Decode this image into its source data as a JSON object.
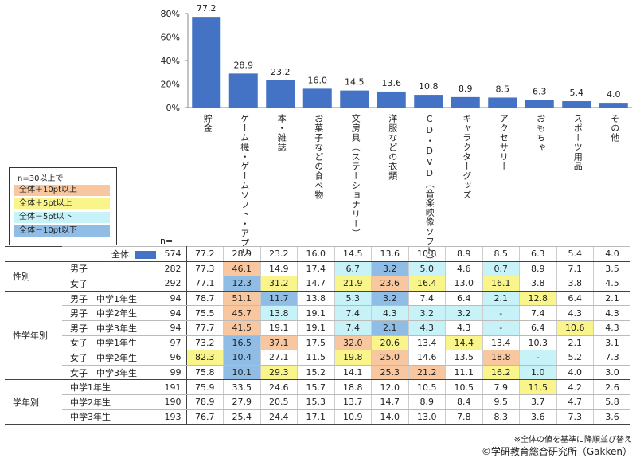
{
  "colors": {
    "bar": "#4472c4",
    "plus10": "#f8c7a0",
    "plus5": "#faf58a",
    "minus5": "#c7f3f8",
    "minus10": "#8fbde6"
  },
  "chart_data": {
    "type": "bar",
    "categories": [
      "貯金",
      "ゲーム機・ゲームソフト・アプリ",
      "本・雑誌",
      "お菓子などの食べ物",
      "文房具（ステーショナリー）",
      "洋服などの衣類",
      "CD・DVD（音楽映像ソフト）",
      "キャラクターグッズ",
      "アクセサリー",
      "おもちゃ",
      "スポーツ用品",
      "その他"
    ],
    "values": [
      77.2,
      28.9,
      23.2,
      16.0,
      14.5,
      13.6,
      10.8,
      8.9,
      8.5,
      6.3,
      5.4,
      4.0
    ],
    "ylim": [
      0,
      80
    ],
    "yticks": [
      "0%",
      "20%",
      "40%",
      "60%",
      "80%"
    ],
    "value_labels": [
      "77.2",
      "28.9",
      "23.2",
      "16.0",
      "14.5",
      "13.6",
      "10.8",
      "8.9",
      "8.5",
      "6.3",
      "5.4",
      "4.0"
    ]
  },
  "legend": {
    "title": "n=30以上で",
    "items": [
      {
        "label": "全体＋10pt以上",
        "color": "#f8c7a0"
      },
      {
        "label": "全体＋5pt以上",
        "color": "#faf58a"
      },
      {
        "label": "全体－5pt以下",
        "color": "#c7f3f8"
      },
      {
        "label": "全体－10pt以下",
        "color": "#8fbde6"
      }
    ]
  },
  "n_header": "n=",
  "table": [
    {
      "group": "",
      "sub": "全体",
      "n": "574",
      "vals": [
        "77.2",
        "28.9",
        "23.2",
        "16.0",
        "14.5",
        "13.6",
        "10.8",
        "8.9",
        "8.5",
        "6.3",
        "5.4",
        "4.0"
      ],
      "hl": [
        "",
        "",
        "",
        "",
        "",
        "",
        "",
        "",
        "",
        "",
        "",
        ""
      ],
      "total": true
    },
    {
      "group": "性別",
      "sub": "男子",
      "n": "282",
      "vals": [
        "77.3",
        "46.1",
        "14.9",
        "17.4",
        "6.7",
        "3.2",
        "5.0",
        "4.6",
        "0.7",
        "8.9",
        "7.1",
        "3.5"
      ],
      "hl": [
        "",
        "p10",
        "",
        "",
        "m5",
        "m10",
        "m5",
        "",
        "m5",
        "",
        "",
        ""
      ]
    },
    {
      "group": "",
      "sub": "女子",
      "n": "292",
      "vals": [
        "77.1",
        "12.3",
        "31.2",
        "14.7",
        "21.9",
        "23.6",
        "16.4",
        "13.0",
        "16.1",
        "3.8",
        "3.8",
        "4.5"
      ],
      "hl": [
        "",
        "m10",
        "p5",
        "",
        "p5",
        "p10",
        "p5",
        "",
        "p5",
        "",
        "",
        ""
      ]
    },
    {
      "group": "性学年別",
      "sub": "男子　中学1年生",
      "n": "94",
      "vals": [
        "78.7",
        "51.1",
        "11.7",
        "13.8",
        "5.3",
        "3.2",
        "7.4",
        "6.4",
        "2.1",
        "12.8",
        "6.4",
        "2.1"
      ],
      "hl": [
        "",
        "p10",
        "m10",
        "",
        "m5",
        "m10",
        "",
        "",
        "m5",
        "p5",
        "",
        ""
      ]
    },
    {
      "group": "",
      "sub": "男子　中学2年生",
      "n": "94",
      "vals": [
        "75.5",
        "45.7",
        "13.8",
        "19.1",
        "7.4",
        "4.3",
        "3.2",
        "3.2",
        "-",
        "7.4",
        "4.3",
        "4.3"
      ],
      "hl": [
        "",
        "p10",
        "m5",
        "",
        "m5",
        "m5",
        "m5",
        "m5",
        "m5",
        "",
        "",
        ""
      ]
    },
    {
      "group": "",
      "sub": "男子　中学3年生",
      "n": "94",
      "vals": [
        "77.7",
        "41.5",
        "19.1",
        "19.1",
        "7.4",
        "2.1",
        "4.3",
        "4.3",
        "-",
        "6.4",
        "10.6",
        "4.3"
      ],
      "hl": [
        "",
        "p10",
        "",
        "",
        "m5",
        "m10",
        "m5",
        "",
        "m5",
        "",
        "p5",
        ""
      ]
    },
    {
      "group": "",
      "sub": "女子　中学1年生",
      "n": "97",
      "vals": [
        "73.2",
        "16.5",
        "37.1",
        "17.5",
        "32.0",
        "20.6",
        "13.4",
        "14.4",
        "13.4",
        "10.3",
        "2.1",
        "3.1"
      ],
      "hl": [
        "",
        "m10",
        "p10",
        "",
        "p10",
        "p5",
        "",
        "p5",
        "",
        "",
        "",
        ""
      ]
    },
    {
      "group": "",
      "sub": "女子　中学2年生",
      "n": "96",
      "vals": [
        "82.3",
        "10.4",
        "27.1",
        "11.5",
        "19.8",
        "25.0",
        "14.6",
        "13.5",
        "18.8",
        "-",
        "5.2",
        "7.3"
      ],
      "hl": [
        "p5",
        "m10",
        "",
        "",
        "p5",
        "p10",
        "",
        "",
        "p10",
        "m5",
        "",
        ""
      ]
    },
    {
      "group": "",
      "sub": "女子　中学3年生",
      "n": "99",
      "vals": [
        "75.8",
        "10.1",
        "29.3",
        "15.2",
        "14.1",
        "25.3",
        "21.2",
        "11.1",
        "16.2",
        "1.0",
        "4.0",
        "3.0"
      ],
      "hl": [
        "",
        "m10",
        "p5",
        "",
        "",
        "p10",
        "p10",
        "",
        "p5",
        "m5",
        "",
        ""
      ]
    },
    {
      "group": "学年別",
      "sub": "中学1年生",
      "n": "191",
      "vals": [
        "75.9",
        "33.5",
        "24.6",
        "15.7",
        "18.8",
        "12.0",
        "10.5",
        "10.5",
        "7.9",
        "11.5",
        "4.2",
        "2.6"
      ],
      "hl": [
        "",
        "",
        "",
        "",
        "",
        "",
        "",
        "",
        "",
        "p5",
        "",
        ""
      ]
    },
    {
      "group": "",
      "sub": "中学2年生",
      "n": "190",
      "vals": [
        "78.9",
        "27.9",
        "20.5",
        "15.3",
        "13.7",
        "14.7",
        "8.9",
        "8.4",
        "9.5",
        "3.7",
        "4.7",
        "5.8"
      ],
      "hl": [
        "",
        "",
        "",
        "",
        "",
        "",
        "",
        "",
        "",
        "",
        "",
        ""
      ]
    },
    {
      "group": "",
      "sub": "中学3年生",
      "n": "193",
      "vals": [
        "76.7",
        "25.4",
        "24.4",
        "17.1",
        "10.9",
        "14.0",
        "13.0",
        "7.8",
        "8.3",
        "3.6",
        "7.3",
        "3.6"
      ],
      "hl": [
        "",
        "",
        "",
        "",
        "",
        "",
        "",
        "",
        "",
        "",
        "",
        ""
      ]
    }
  ],
  "notes": {
    "sort_note": "※全体の値を基準に降順並び替え",
    "copyright": "©学研教育総合研究所（Gakken）"
  }
}
